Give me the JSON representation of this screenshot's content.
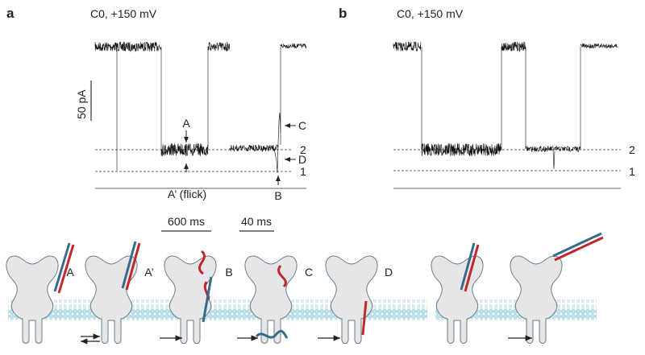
{
  "panels": [
    {
      "label": "a",
      "condition": "C0, +150 mV",
      "scale_bar": "50 pA",
      "annotations": {
        "A": "A",
        "A_flick": "A’ (flick)",
        "B": "B",
        "C": "C",
        "D": "D"
      },
      "levels": [
        "2",
        "1"
      ],
      "time_scales": [
        "600 ms",
        "40 ms"
      ]
    },
    {
      "label": "b",
      "condition": "C0, +150 mV",
      "levels": [
        "2",
        "1"
      ]
    }
  ],
  "schematic": {
    "states": [
      "A",
      "A’",
      "B",
      "C",
      "D"
    ]
  }
}
